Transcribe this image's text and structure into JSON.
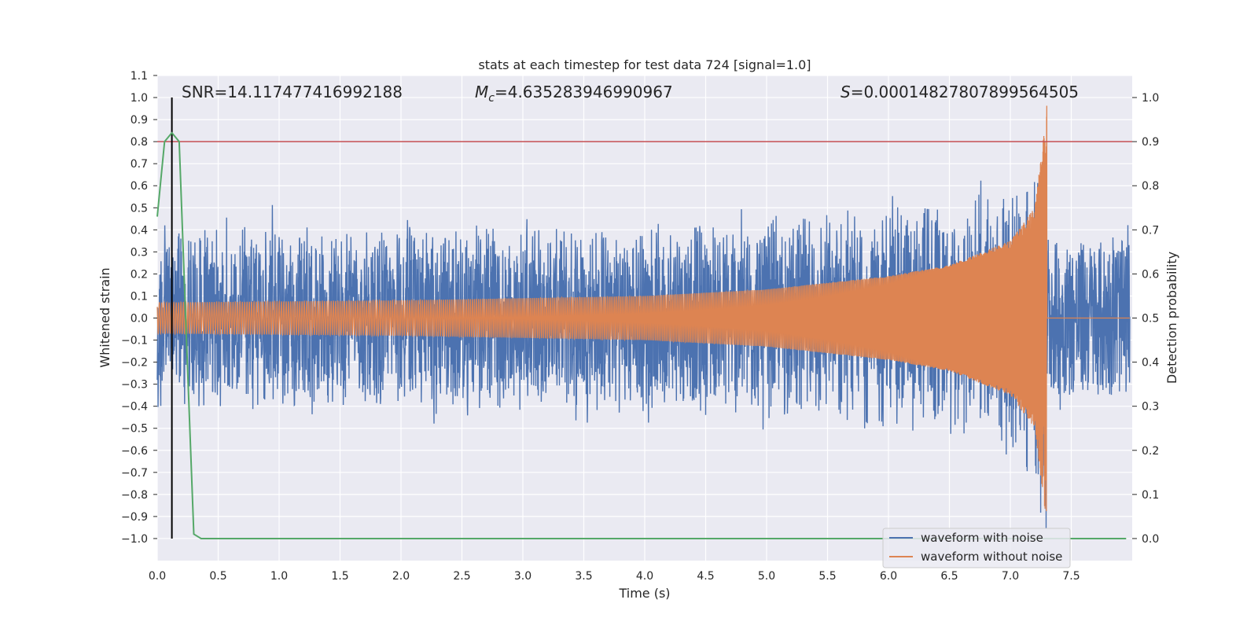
{
  "chart_data": {
    "type": "line",
    "title": "stats at each timestep for test data 724 [signal=1.0]",
    "xlabel": "Time (s)",
    "ylabel_left": "Whitened strain",
    "ylabel_right": "Detection probability",
    "xlim": [
      0.0,
      8.0
    ],
    "ylim_left": [
      -1.1,
      1.1
    ],
    "ylim_right": [
      -0.05,
      1.05
    ],
    "x_ticks": [
      0.0,
      0.5,
      1.0,
      1.5,
      2.0,
      2.5,
      3.0,
      3.5,
      4.0,
      4.5,
      5.0,
      5.5,
      6.0,
      6.5,
      7.0,
      7.5
    ],
    "x_tick_labels": [
      "0.0",
      "0.5",
      "1.0",
      "1.5",
      "2.0",
      "2.5",
      "3.0",
      "3.5",
      "4.0",
      "4.5",
      "5.0",
      "5.5",
      "6.0",
      "6.5",
      "7.0",
      "7.5"
    ],
    "y_left_ticks": [
      1.1,
      1.0,
      0.9,
      0.8,
      0.7,
      0.6,
      0.5,
      0.4,
      0.3,
      0.2,
      0.1,
      0.0,
      -0.1,
      -0.2,
      -0.3,
      -0.4,
      -0.5,
      -0.6,
      -0.7,
      -0.8,
      -0.9,
      -1.0
    ],
    "y_left_tick_labels": [
      "1.1",
      "1.0",
      "0.9",
      "0.8",
      "0.7",
      "0.6",
      "0.5",
      "0.4",
      "0.3",
      "0.2",
      "0.1",
      "0.0",
      "−0.1",
      "−0.2",
      "−0.3",
      "−0.4",
      "−0.5",
      "−0.6",
      "−0.7",
      "−0.8",
      "−0.9",
      "−1.0"
    ],
    "y_right_ticks": [
      1.0,
      0.9,
      0.8,
      0.7,
      0.6,
      0.5,
      0.4,
      0.3,
      0.2,
      0.1,
      0.0
    ],
    "y_right_tick_labels": [
      "1.0",
      "0.9",
      "0.8",
      "0.7",
      "0.6",
      "0.5",
      "0.4",
      "0.3",
      "0.2",
      "0.1",
      "0.0"
    ],
    "annotations": {
      "snr": "SNR=14.117477416992188",
      "mc_symbol": "M",
      "mc_sub": "c",
      "mc_value": "=4.635283946990967",
      "s_symbol": "S",
      "s_value": "=0.00014827807899564505"
    },
    "threshold_line": {
      "value": 0.9,
      "axis": "right",
      "color": "#c44e52"
    },
    "marker_line": {
      "x": 0.12,
      "y_range": [
        -1.0,
        1.0
      ],
      "color": "#000000"
    },
    "merger_time": 7.3,
    "series": [
      {
        "name": "waveform with noise",
        "axis": "left",
        "color": "#4c72b0",
        "description": "noise envelope approx ±0.35, peaks to ±0.45; with signal superposed, grows to ~1.0 near 7.28 s",
        "noise_level": 0.35
      },
      {
        "name": "waveform without noise",
        "axis": "left",
        "color": "#dd8452",
        "chirp_envelope": {
          "t": [
            0.0,
            1.0,
            2.0,
            3.0,
            4.0,
            5.0,
            6.0,
            6.5,
            7.0,
            7.2,
            7.28,
            7.3
          ],
          "amplitude": [
            0.07,
            0.075,
            0.08,
            0.09,
            0.1,
            0.13,
            0.19,
            0.24,
            0.35,
            0.5,
            0.85,
            0.97
          ]
        }
      },
      {
        "name": "detection probability",
        "axis": "right",
        "color": "#55a868",
        "x": [
          0.0,
          0.06,
          0.12,
          0.18,
          0.24,
          0.3,
          0.36,
          0.5,
          1.0,
          2.0,
          3.0,
          4.0,
          5.0,
          6.0,
          7.0,
          7.3,
          7.5,
          7.95
        ],
        "y": [
          0.73,
          0.9,
          0.92,
          0.9,
          0.45,
          0.01,
          0.0,
          0.0,
          0.0,
          0.0,
          0.0,
          0.0,
          0.0,
          0.0,
          0.0,
          0.0,
          0.0,
          0.0
        ]
      }
    ],
    "legend": {
      "placement": "lower-right",
      "entries": [
        {
          "label": "waveform with noise",
          "color": "#4c72b0"
        },
        {
          "label": "waveform without noise",
          "color": "#dd8452"
        }
      ]
    },
    "background": "#eaeaf2",
    "grid": true
  }
}
